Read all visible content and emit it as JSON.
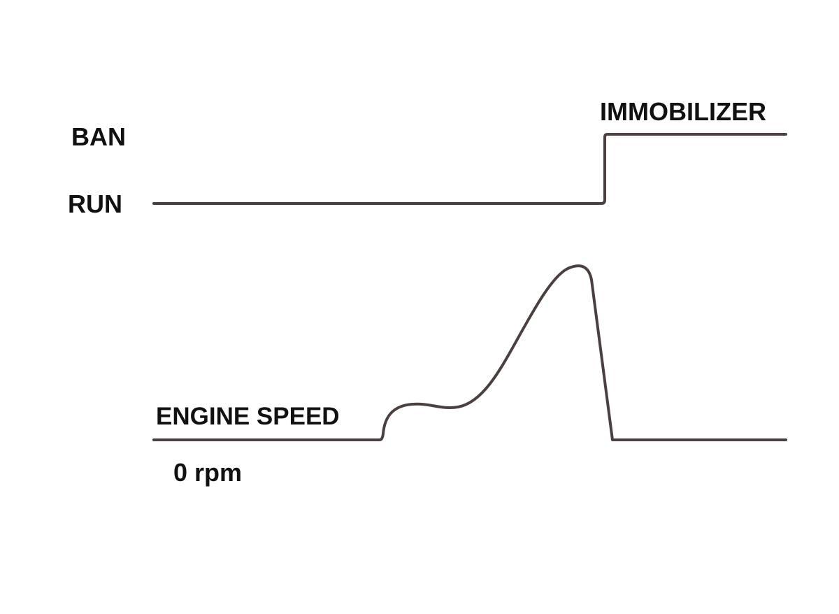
{
  "labels": {
    "ban": "BAN",
    "run": "RUN",
    "immobilizer": "IMMOBILIZER",
    "engine_speed": "ENGINE SPEED",
    "zero_rpm": "0 rpm"
  }
}
